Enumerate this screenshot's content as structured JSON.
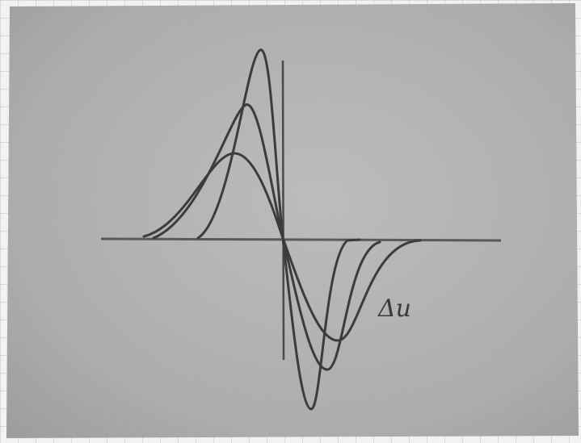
{
  "label": "Δu"
}
